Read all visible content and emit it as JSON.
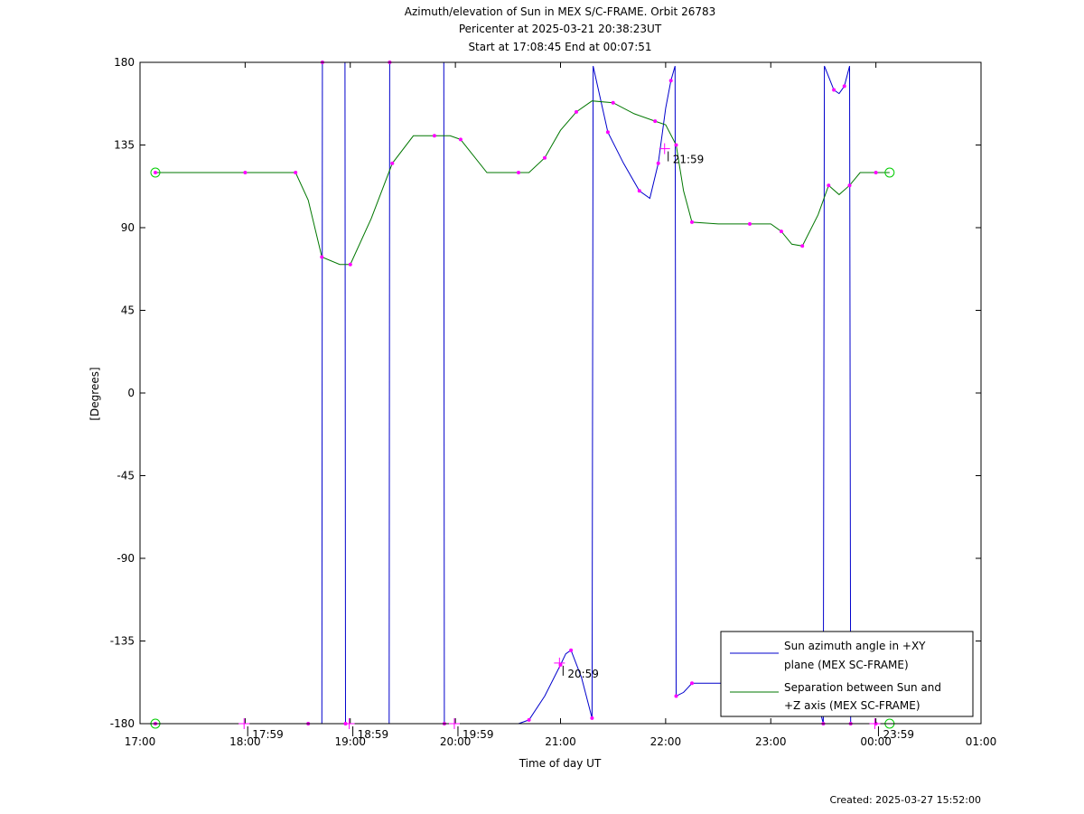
{
  "chart_data": {
    "type": "line",
    "title_lines": [
      "Azimuth/elevation of Sun in MEX S/C-FRAME.  Orbit 26783",
      "Pericenter at 2025-03-21 20:38:23UT",
      "Start at 17:08:45 End at 00:07:51"
    ],
    "xlabel": "Time of day UT",
    "ylabel": "[Degrees]",
    "xlim": [
      17.0,
      25.0
    ],
    "ylim": [
      -180,
      180
    ],
    "x_ticks": [
      {
        "v": 17,
        "label": "17:00"
      },
      {
        "v": 18,
        "label": "18:00"
      },
      {
        "v": 19,
        "label": "19:00"
      },
      {
        "v": 20,
        "label": "20:00"
      },
      {
        "v": 21,
        "label": "21:00"
      },
      {
        "v": 22,
        "label": "22:00"
      },
      {
        "v": 23,
        "label": "23:00"
      },
      {
        "v": 24,
        "label": "00:00"
      },
      {
        "v": 25,
        "label": "01:00"
      }
    ],
    "y_ticks": [
      {
        "v": 180,
        "label": "180"
      },
      {
        "v": 135,
        "label": "135"
      },
      {
        "v": 90,
        "label": "90"
      },
      {
        "v": 45,
        "label": "45"
      },
      {
        "v": 0,
        "label": "0"
      },
      {
        "v": -45,
        "label": "-45"
      },
      {
        "v": -90,
        "label": "-90"
      },
      {
        "v": -135,
        "label": "-135"
      },
      {
        "v": -180,
        "label": "-180"
      }
    ],
    "series": [
      {
        "name": "Sun azimuth angle in +XY plane (MEX SC-FRAME)",
        "legend_lines": [
          "Sun azimuth angle in +XY",
          "plane (MEX SC-FRAME)"
        ],
        "color": "#0000cc",
        "x": [
          17.146,
          18.0,
          18.6,
          18.73,
          18.735,
          18.95,
          18.955,
          19.37,
          19.375,
          19.89,
          19.895,
          20.6,
          20.7,
          20.85,
          21.0,
          21.05,
          21.1,
          21.2,
          21.3,
          21.31,
          21.45,
          21.6,
          21.75,
          21.85,
          21.93,
          22.0,
          22.05,
          22.09,
          22.1,
          22.17,
          22.25,
          22.5,
          22.8,
          23.0,
          23.2,
          23.4,
          23.5,
          23.51,
          23.6,
          23.65,
          23.7,
          23.75,
          23.76,
          23.85,
          24.0,
          24.13
        ],
        "y": [
          -180,
          -180,
          -180,
          -180,
          180,
          180,
          -180,
          -180,
          180,
          180,
          -180,
          -180,
          -178,
          -165,
          -148,
          -142,
          -140,
          -155,
          -177,
          178,
          142,
          125,
          110,
          106,
          125,
          155,
          170,
          178,
          -165,
          -163,
          -158,
          -158,
          -158,
          -158,
          -158,
          -158,
          -180,
          178,
          165,
          163,
          167,
          178,
          -180,
          -180,
          -180,
          -180
        ]
      },
      {
        "name": "Separation between Sun and +Z axis (MEX SC-FRAME)",
        "legend_lines": [
          "Separation between Sun and",
          "+Z axis (MEX SC-FRAME)"
        ],
        "color": "#007700",
        "x": [
          17.146,
          17.5,
          18.0,
          18.3,
          18.48,
          18.6,
          18.73,
          18.9,
          19.0,
          19.2,
          19.4,
          19.6,
          19.8,
          19.95,
          20.05,
          20.3,
          20.6,
          20.7,
          20.85,
          21.0,
          21.15,
          21.3,
          21.5,
          21.7,
          21.9,
          22.0,
          22.1,
          22.17,
          22.25,
          22.5,
          22.8,
          23.0,
          23.1,
          23.2,
          23.3,
          23.45,
          23.55,
          23.65,
          23.75,
          23.85,
          24.0,
          24.13
        ],
        "y": [
          120,
          120,
          120,
          120,
          120,
          105,
          74,
          70,
          70,
          95,
          125,
          140,
          140,
          140,
          138,
          120,
          120,
          120,
          128,
          143,
          153,
          159,
          158,
          152,
          148,
          146,
          135,
          110,
          93,
          92,
          92,
          92,
          88,
          81,
          80,
          97,
          113,
          108,
          113,
          120,
          120,
          120
        ]
      }
    ],
    "annotations": [
      {
        "x": 17.99,
        "y": -180,
        "label": "17:59"
      },
      {
        "x": 18.99,
        "y": -180,
        "label": "18:59"
      },
      {
        "x": 19.99,
        "y": -180,
        "label": "19:59"
      },
      {
        "x": 20.99,
        "y": -147,
        "label": "20:59"
      },
      {
        "x": 21.99,
        "y": 133,
        "label": "21:59"
      },
      {
        "x": 23.99,
        "y": -180,
        "label": "23:59"
      }
    ],
    "legend_placement": "lower-right",
    "grid": false,
    "footer": "Created: 2025-03-27 15:52:00"
  }
}
